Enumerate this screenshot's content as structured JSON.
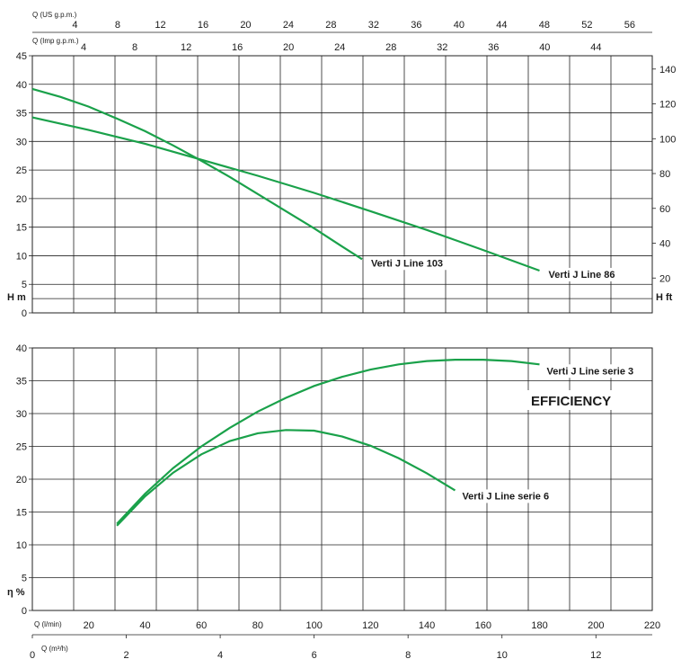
{
  "chart_data": [
    {
      "type": "line",
      "title": "",
      "top_axis_upper": {
        "label": "Q (US g.p.m.)",
        "ticks": [
          4,
          8,
          12,
          16,
          20,
          24,
          28,
          32,
          36,
          40,
          44,
          48,
          52,
          56
        ]
      },
      "top_axis_lower": {
        "label": "Q (Imp g.p.m.)",
        "ticks": [
          4,
          8,
          12,
          16,
          20,
          24,
          28,
          32,
          36,
          40,
          44
        ]
      },
      "ylabel_left": "H m",
      "ylabel_right": "H ft",
      "ylim": [
        0,
        45
      ],
      "y_ticks_left": [
        0,
        5,
        10,
        15,
        20,
        25,
        30,
        35,
        40,
        45
      ],
      "y_ticks_right": [
        20,
        40,
        60,
        80,
        100,
        120,
        140
      ],
      "xlim_lmin": [
        0,
        220
      ],
      "series": [
        {
          "name": "Verti J Line 103",
          "x_lmin": [
            0,
            10,
            20,
            30,
            40,
            50,
            60,
            70,
            80,
            90,
            100,
            110,
            117
          ],
          "y_m": [
            39.2,
            37.8,
            36.1,
            34.0,
            31.8,
            29.3,
            26.6,
            23.8,
            20.8,
            17.8,
            14.8,
            11.6,
            9.4
          ]
        },
        {
          "name": "Verti J Line 86",
          "x_lmin": [
            0,
            20,
            40,
            60,
            80,
            100,
            120,
            140,
            160,
            180
          ],
          "y_m": [
            34.2,
            32.0,
            29.6,
            26.8,
            24.0,
            21.0,
            17.8,
            14.5,
            11.0,
            7.4
          ]
        }
      ]
    },
    {
      "type": "line",
      "title": "EFFICIENCY",
      "xlabel_upper": "Q (l/min)",
      "xlabel_lower": "Q (m³/h)",
      "x_ticks_lmin": [
        20,
        40,
        60,
        80,
        100,
        120,
        140,
        160,
        180,
        200,
        220
      ],
      "x_ticks_m3h": [
        0,
        2,
        4,
        6,
        8,
        10,
        12
      ],
      "xlim_lmin": [
        0,
        220
      ],
      "ylabel": "η %",
      "ylim": [
        0,
        40
      ],
      "y_ticks": [
        0,
        5,
        10,
        15,
        20,
        25,
        30,
        35,
        40
      ],
      "series": [
        {
          "name": "Verti J Line serie 3",
          "x_lmin": [
            30,
            40,
            50,
            60,
            70,
            80,
            90,
            100,
            110,
            120,
            130,
            140,
            150,
            160,
            170,
            180
          ],
          "y": [
            13.2,
            17.8,
            21.7,
            25.0,
            27.8,
            30.3,
            32.4,
            34.2,
            35.6,
            36.7,
            37.5,
            38.0,
            38.2,
            38.2,
            38.0,
            37.5
          ]
        },
        {
          "name": "Verti J Line serie 6",
          "x_lmin": [
            30,
            40,
            50,
            60,
            70,
            80,
            90,
            100,
            110,
            120,
            130,
            140,
            150
          ],
          "y": [
            12.9,
            17.4,
            21.0,
            23.8,
            25.8,
            27.0,
            27.5,
            27.4,
            26.5,
            25.1,
            23.2,
            20.9,
            18.3
          ]
        }
      ]
    }
  ]
}
